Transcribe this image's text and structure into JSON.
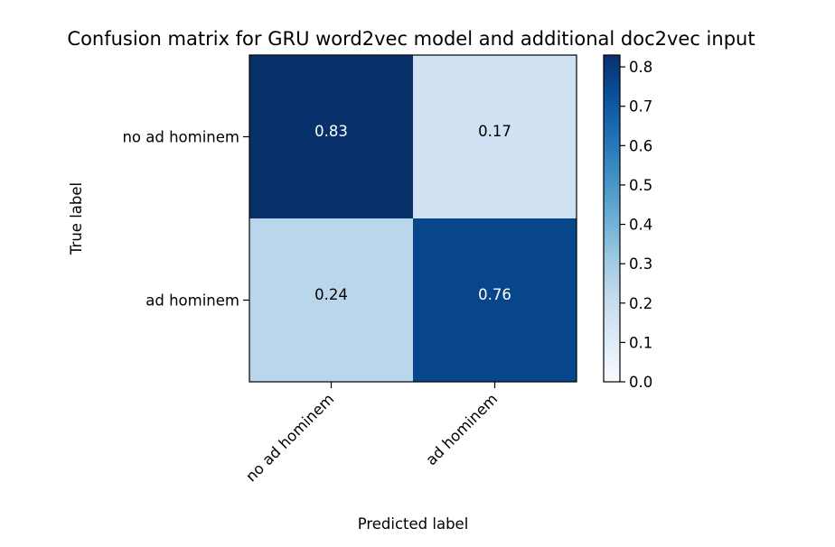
{
  "chart_data": {
    "type": "heatmap",
    "title": "Confusion matrix for GRU word2vec model and additional doc2vec input",
    "xlabel": "Predicted label",
    "ylabel": "True label",
    "x_categories": [
      "no ad hominem",
      "ad hominem"
    ],
    "y_categories": [
      "no ad hominem",
      "ad hominem"
    ],
    "values": [
      [
        0.83,
        0.17
      ],
      [
        0.24,
        0.76
      ]
    ],
    "cell_labels": [
      [
        "0.83",
        "0.17"
      ],
      [
        "0.24",
        "0.76"
      ]
    ],
    "colormap": "Blues",
    "colormap_stops": [
      "#f7fbff",
      "#deebf7",
      "#c6dbef",
      "#9ecae1",
      "#6baed6",
      "#4292c6",
      "#2171b5",
      "#08519c",
      "#08306b"
    ],
    "color_range": [
      0,
      0.83
    ],
    "text_color_light": "#ffffff",
    "text_color_dark": "#000000",
    "colorbar": {
      "ticks": [
        "0.0",
        "0.1",
        "0.2",
        "0.3",
        "0.4",
        "0.5",
        "0.6",
        "0.7",
        "0.8"
      ],
      "range": [
        0,
        0.83
      ],
      "position": "right"
    },
    "grid": false
  }
}
